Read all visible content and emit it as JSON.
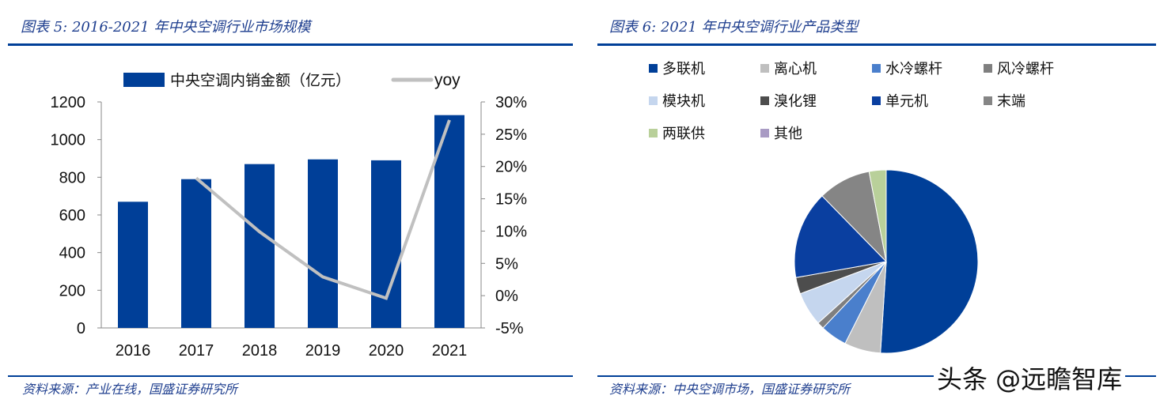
{
  "left": {
    "title": "图表 5:  2016-2021 年中央空调行业市场规模",
    "source": "资料来源：产业在线，国盛证券研究所"
  },
  "right": {
    "title": "图表 6:  2021 年中央空调行业产品类型",
    "source": "资料来源：中央空调市场，国盛证券研究所"
  },
  "watermark": "头条 @远瞻智库",
  "chart_data": [
    {
      "type": "bar+line",
      "categories": [
        "2016",
        "2017",
        "2018",
        "2019",
        "2020",
        "2021"
      ],
      "series": [
        {
          "name": "中央空调内销金额（亿元）",
          "type": "bar",
          "axis": "left",
          "color": "#003f98",
          "values": [
            670,
            790,
            870,
            895,
            890,
            1130
          ]
        },
        {
          "name": "yoy",
          "type": "line",
          "axis": "right",
          "color": "#c0c0c0",
          "values": [
            null,
            18.2,
            9.9,
            2.9,
            -0.4,
            27.2
          ]
        }
      ],
      "ylim": [
        0,
        1200
      ],
      "yticks": [
        "0",
        "200",
        "400",
        "600",
        "800",
        "1000",
        "1200"
      ],
      "y2lim": [
        -5,
        30
      ],
      "y2ticks": [
        "-5%",
        "0%",
        "5%",
        "10%",
        "15%",
        "20%",
        "25%",
        "30%"
      ],
      "legend": "top",
      "grid": false
    },
    {
      "type": "pie",
      "start": "12 o'clock, clockwise",
      "legend": "top",
      "slices": [
        {
          "label": "多联机",
          "value": 51.0,
          "color": "#003f98"
        },
        {
          "label": "离心机",
          "value": 6.4,
          "color": "#bfbfbf"
        },
        {
          "label": "水冷螺杆",
          "value": 4.7,
          "color": "#4a7fcc"
        },
        {
          "label": "风冷螺杆",
          "value": 1.2,
          "color": "#7f7f7f"
        },
        {
          "label": "模块机",
          "value": 6.0,
          "color": "#c5d6ee"
        },
        {
          "label": "溴化锂",
          "value": 2.9,
          "color": "#4d4d4d"
        },
        {
          "label": "单元机",
          "value": 15.5,
          "color": "#0a3fa0"
        },
        {
          "label": "末端",
          "value": 9.3,
          "color": "#858585"
        },
        {
          "label": "两联供",
          "value": 3.0,
          "color": "#b9d09a"
        },
        {
          "label": "其他",
          "value": 0.0,
          "color": "#a99bc4"
        }
      ]
    }
  ]
}
